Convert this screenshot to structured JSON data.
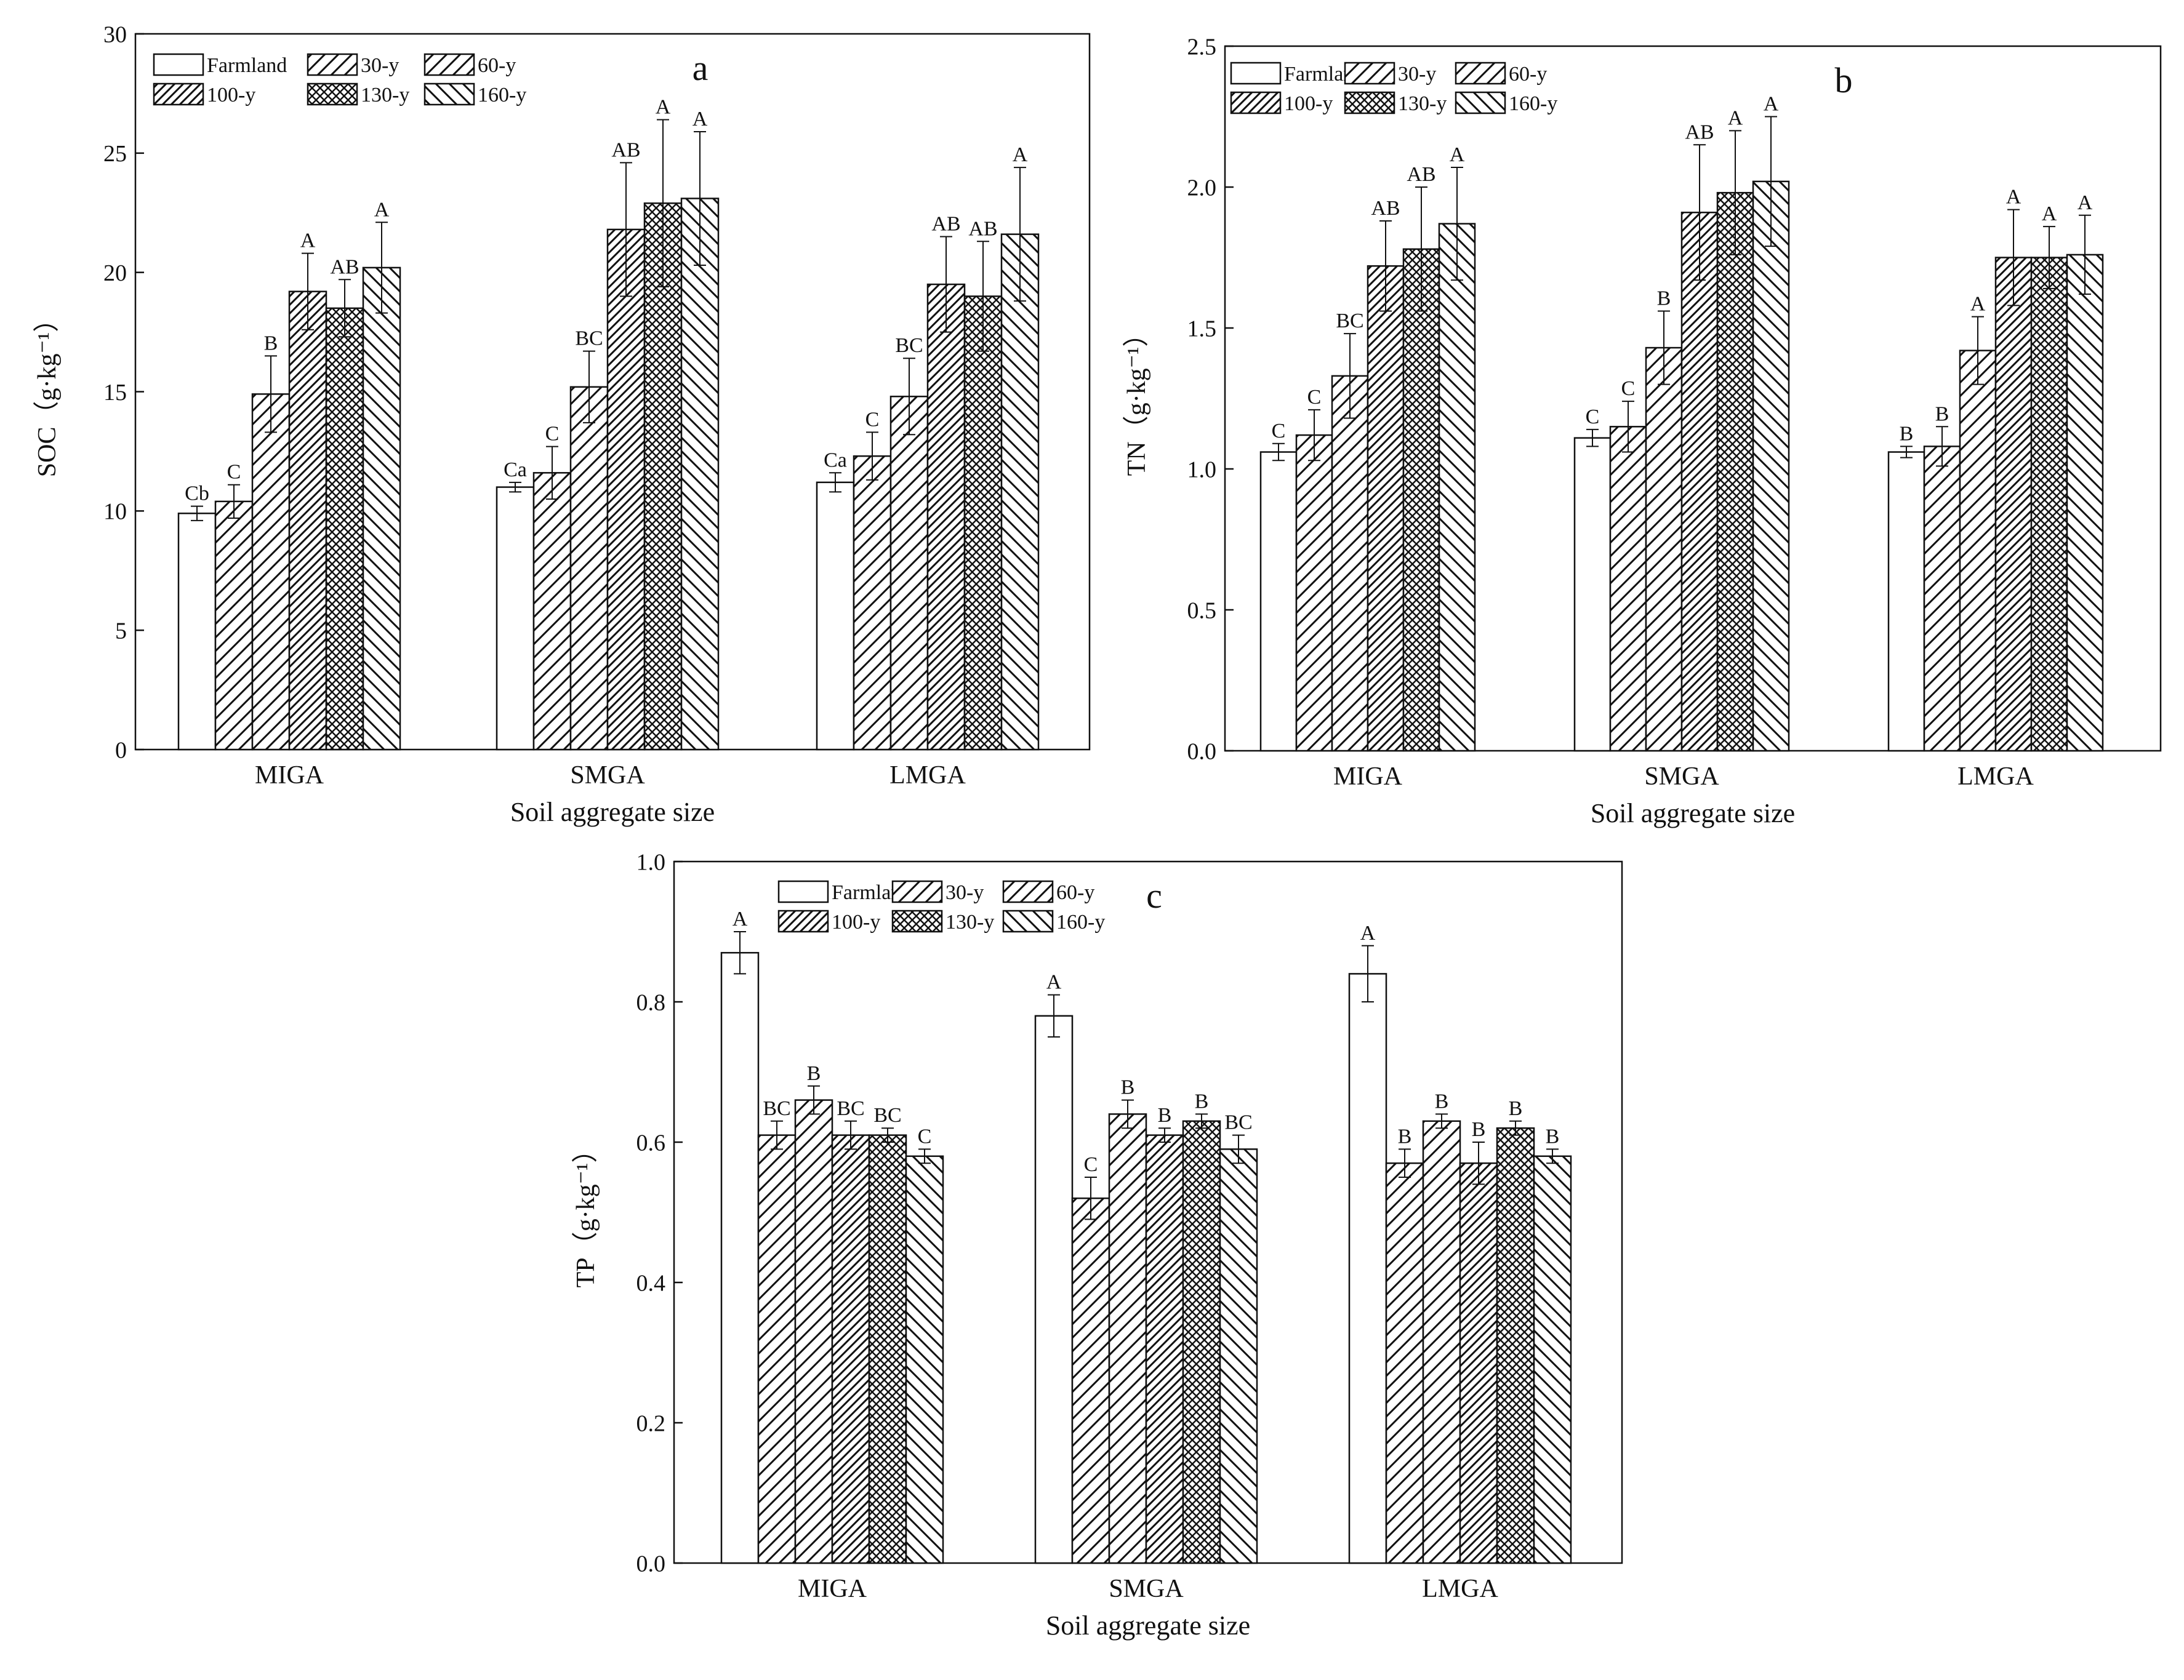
{
  "figure": {
    "colors": {
      "stroke": "#111111",
      "fill": "#ffffff",
      "background": "#ffffff"
    }
  },
  "chart_data": [
    {
      "type": "bar",
      "panel_label": "a",
      "title": "",
      "xlabel": "Soil aggregate size",
      "ylabel": "SOC（g·kg⁻¹）",
      "ylim": [
        0,
        30
      ],
      "yticks": [
        0,
        5,
        10,
        15,
        20,
        25,
        30
      ],
      "categories": [
        "MIGA",
        "SMGA",
        "LMGA"
      ],
      "legend_columns": 3,
      "series": [
        {
          "name": "Farmland",
          "pattern": "none",
          "values": [
            9.9,
            11.0,
            11.2
          ],
          "errors": [
            0.3,
            0.2,
            0.4
          ],
          "letters": [
            "Cb",
            "Ca",
            "Ca"
          ]
        },
        {
          "name": "30-y",
          "pattern": "fwd",
          "values": [
            10.4,
            11.6,
            12.3
          ],
          "errors": [
            0.7,
            1.1,
            1.0
          ],
          "letters": [
            "C",
            "C",
            "C"
          ]
        },
        {
          "name": "60-y",
          "pattern": "fwd",
          "values": [
            14.9,
            15.2,
            14.8
          ],
          "errors": [
            1.6,
            1.5,
            1.6
          ],
          "letters": [
            "B",
            "BC",
            "BC"
          ]
        },
        {
          "name": "100-y",
          "pattern": "fwd2",
          "values": [
            19.2,
            21.8,
            19.5
          ],
          "errors": [
            1.6,
            2.8,
            2.0
          ],
          "letters": [
            "A",
            "AB",
            "AB"
          ]
        },
        {
          "name": "130-y",
          "pattern": "cross",
          "values": [
            18.5,
            22.9,
            19.0
          ],
          "errors": [
            1.2,
            3.5,
            2.3
          ],
          "letters": [
            "AB",
            "A",
            "AB"
          ]
        },
        {
          "name": "160-y",
          "pattern": "back",
          "values": [
            20.2,
            23.1,
            21.6
          ],
          "errors": [
            1.9,
            2.8,
            2.8
          ],
          "letters": [
            "A",
            "A",
            "A"
          ]
        }
      ]
    },
    {
      "type": "bar",
      "panel_label": "b",
      "title": "",
      "xlabel": "Soil aggregate size",
      "ylabel": "TN（g·kg⁻¹）",
      "ylim": [
        0,
        2.5
      ],
      "yticks": [
        0.0,
        0.5,
        1.0,
        1.5,
        2.0,
        2.5
      ],
      "categories": [
        "MIGA",
        "SMGA",
        "LMGA"
      ],
      "legend_columns": 3,
      "series": [
        {
          "name": "Farmland",
          "pattern": "none",
          "values": [
            1.06,
            1.11,
            1.06
          ],
          "errors": [
            0.03,
            0.03,
            0.02
          ],
          "letters": [
            "C",
            "C",
            "B"
          ]
        },
        {
          "name": "30-y",
          "pattern": "fwd",
          "values": [
            1.12,
            1.15,
            1.08
          ],
          "errors": [
            0.09,
            0.09,
            0.07
          ],
          "letters": [
            "C",
            "C",
            "B"
          ]
        },
        {
          "name": "60-y",
          "pattern": "fwd",
          "values": [
            1.33,
            1.43,
            1.42
          ],
          "errors": [
            0.15,
            0.13,
            0.12
          ],
          "letters": [
            "BC",
            "B",
            "A"
          ]
        },
        {
          "name": "100-y",
          "pattern": "fwd2",
          "values": [
            1.72,
            1.91,
            1.75
          ],
          "errors": [
            0.16,
            0.24,
            0.17
          ],
          "letters": [
            "AB",
            "AB",
            "A"
          ]
        },
        {
          "name": "130-y",
          "pattern": "cross",
          "values": [
            1.78,
            1.98,
            1.75
          ],
          "errors": [
            0.22,
            0.22,
            0.11
          ],
          "letters": [
            "AB",
            "A",
            "A"
          ]
        },
        {
          "name": "160-y",
          "pattern": "back",
          "values": [
            1.87,
            2.02,
            1.76
          ],
          "errors": [
            0.2,
            0.23,
            0.14
          ],
          "letters": [
            "A",
            "A",
            "A"
          ]
        }
      ]
    },
    {
      "type": "bar",
      "panel_label": "c",
      "title": "",
      "xlabel": "Soil aggregate size",
      "ylabel": "TP（g·kg⁻¹）",
      "ylim": [
        0,
        1.0
      ],
      "yticks": [
        0.0,
        0.2,
        0.4,
        0.6,
        0.8,
        1.0
      ],
      "categories": [
        "MIGA",
        "SMGA",
        "LMGA"
      ],
      "legend_columns": 3,
      "series": [
        {
          "name": "Farmland",
          "pattern": "none",
          "values": [
            0.87,
            0.78,
            0.84
          ],
          "errors": [
            0.03,
            0.03,
            0.04
          ],
          "letters": [
            "A",
            "A",
            "A"
          ]
        },
        {
          "name": "30-y",
          "pattern": "fwd",
          "values": [
            0.61,
            0.52,
            0.57
          ],
          "errors": [
            0.02,
            0.03,
            0.02
          ],
          "letters": [
            "BC",
            "C",
            "B"
          ]
        },
        {
          "name": "60-y",
          "pattern": "fwd",
          "values": [
            0.66,
            0.64,
            0.63
          ],
          "errors": [
            0.02,
            0.02,
            0.01
          ],
          "letters": [
            "B",
            "B",
            "B"
          ]
        },
        {
          "name": "100-y",
          "pattern": "fwd2",
          "values": [
            0.61,
            0.61,
            0.57
          ],
          "errors": [
            0.02,
            0.01,
            0.03
          ],
          "letters": [
            "BC",
            "B",
            "B"
          ]
        },
        {
          "name": "130-y",
          "pattern": "cross",
          "values": [
            0.61,
            0.63,
            0.62
          ],
          "errors": [
            0.01,
            0.01,
            0.01
          ],
          "letters": [
            "BC",
            "B",
            "B"
          ]
        },
        {
          "name": "160-y",
          "pattern": "back",
          "values": [
            0.58,
            0.59,
            0.58
          ],
          "errors": [
            0.01,
            0.02,
            0.01
          ],
          "letters": [
            "C",
            "BC",
            "B"
          ]
        }
      ]
    }
  ]
}
